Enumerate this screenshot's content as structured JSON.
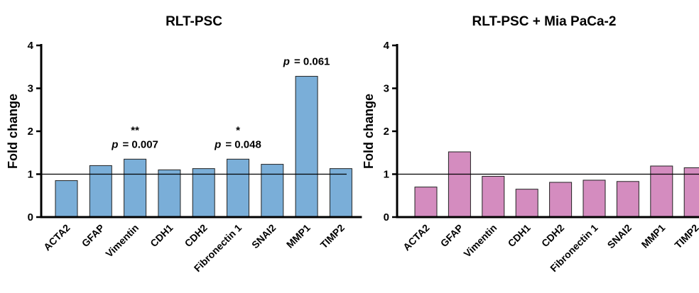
{
  "chart_data": [
    {
      "type": "bar",
      "title": "RLT-PSC",
      "ylabel": "Fold change",
      "ylim": [
        0,
        4
      ],
      "yticks": [
        "0",
        "1",
        "2",
        "3",
        "4"
      ],
      "reference_line": 1,
      "bar_color": "#7aaed8",
      "categories": [
        "ACTA2",
        "GFAP",
        "Vimentin",
        "CDH1",
        "CDH2",
        "Fibronectin 1",
        "SNAI2",
        "MMP1",
        "TIMP2"
      ],
      "values": [
        0.85,
        1.2,
        1.35,
        1.1,
        1.13,
        1.35,
        1.23,
        3.28,
        1.13
      ],
      "annotations": [
        {
          "category": "Vimentin",
          "stars": "**",
          "p_label": "p",
          "p_text": "=  0.007"
        },
        {
          "category": "Fibronectin 1",
          "stars": "*",
          "p_label": "p",
          "p_text": "=  0.048"
        },
        {
          "category": "MMP1",
          "stars": "",
          "p_label": "p",
          "p_text": "=  0.061"
        }
      ]
    },
    {
      "type": "bar",
      "title": "RLT-PSC  + Mia  PaCa-2",
      "ylabel": "Fold change",
      "ylim": [
        0,
        4
      ],
      "yticks": [
        "0",
        "1",
        "2",
        "3",
        "4"
      ],
      "reference_line": 1,
      "bar_color": "#d48cbf",
      "categories": [
        "ACTA2",
        "GFAP",
        "Vimentin",
        "CDH1",
        "CDH2",
        "Fibronectin 1",
        "SNAI2",
        "MMP1",
        "TIMP2"
      ],
      "values": [
        0.7,
        1.52,
        0.95,
        0.65,
        0.81,
        0.86,
        0.83,
        1.19,
        1.15
      ],
      "annotations": []
    }
  ]
}
